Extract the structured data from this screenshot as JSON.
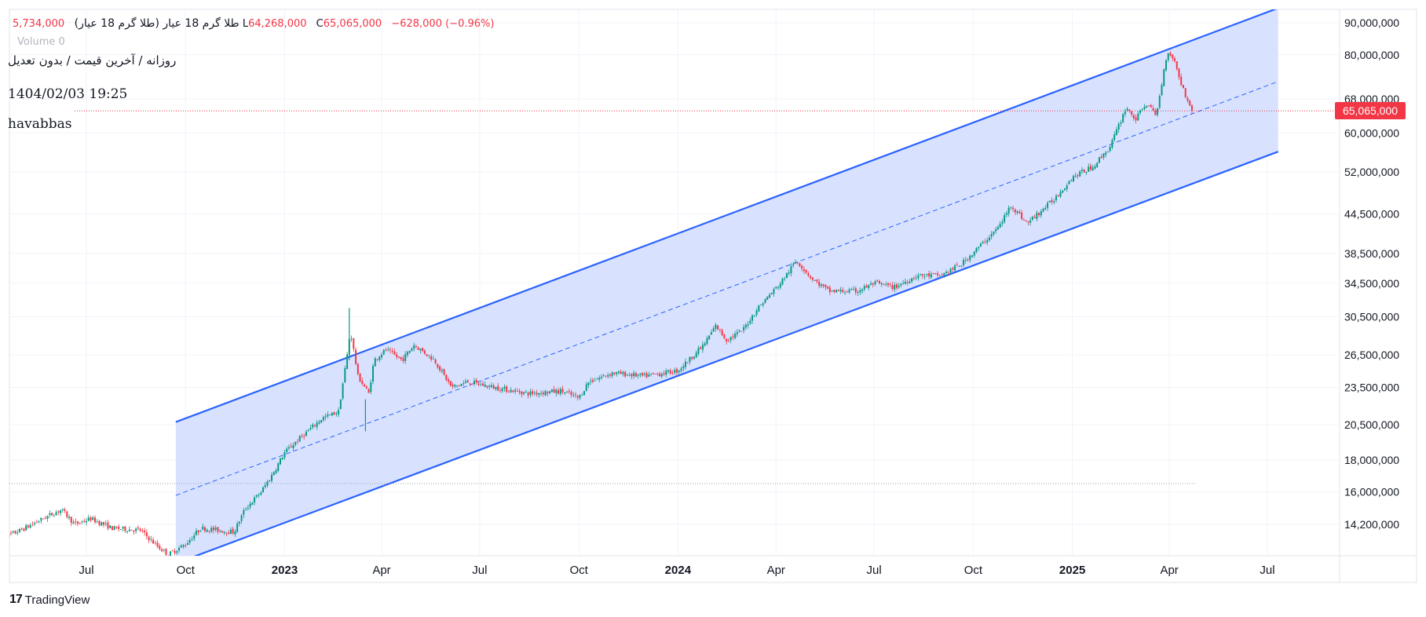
{
  "header": {
    "symbol": "طلا گرم 18 عیار (طلا گرم 18 عیار)",
    "ohlc_partial": "5,734,000",
    "low_label": "L",
    "low_value": "64,268,000",
    "close_label": "C",
    "close_value": "65,065,000",
    "change": "−628,000 (−0.96%)",
    "volume_label": "Volume",
    "volume_value": "0",
    "subtitle": "روزانه / آخرین قیمت / بدون تعدیل",
    "timestamp": "1404/02/03 19:25",
    "author": "havabbas"
  },
  "brand": {
    "name": "TradingView"
  },
  "last_price_label": "65,065,000",
  "colors": {
    "up": "#089981",
    "down": "#f23645",
    "channel_line": "#2962ff",
    "channel_fill": "#d6e0ff",
    "grid": "#f0f3fa",
    "axis_text": "#131722",
    "price_line": "#f23645"
  },
  "chart_data": {
    "type": "candlestick",
    "scale": "log",
    "y_ticks": [
      "14,200,000",
      "16,000,000",
      "18,000,000",
      "20,500,000",
      "23,500,000",
      "26,500,000",
      "30,500,000",
      "34,500,000",
      "38,500,000",
      "44,500,000",
      "52,000,000",
      "60,000,000",
      "68,000,000",
      "80,000,000",
      "90,000,000"
    ],
    "x_ticks": [
      {
        "label": "Jul",
        "date": "2022-07-01",
        "bold": false
      },
      {
        "label": "Oct",
        "date": "2022-10-01",
        "bold": false
      },
      {
        "label": "2023",
        "date": "2023-01-01",
        "bold": true
      },
      {
        "label": "Apr",
        "date": "2023-04-01",
        "bold": false
      },
      {
        "label": "Jul",
        "date": "2023-07-01",
        "bold": false
      },
      {
        "label": "Oct",
        "date": "2023-10-01",
        "bold": false
      },
      {
        "label": "2024",
        "date": "2024-01-01",
        "bold": true
      },
      {
        "label": "Apr",
        "date": "2024-04-01",
        "bold": false
      },
      {
        "label": "Jul",
        "date": "2024-07-01",
        "bold": false
      },
      {
        "label": "Oct",
        "date": "2024-10-01",
        "bold": false
      },
      {
        "label": "2025",
        "date": "2025-01-01",
        "bold": true
      },
      {
        "label": "Apr",
        "date": "2025-04-01",
        "bold": false
      },
      {
        "label": "Jul",
        "date": "2025-07-01",
        "bold": false
      }
    ],
    "price_series": [
      {
        "date": "2022-04-10",
        "value": 13400000
      },
      {
        "date": "2022-05-01",
        "value": 13900000
      },
      {
        "date": "2022-05-25",
        "value": 14600000
      },
      {
        "date": "2022-06-08",
        "value": 15000000
      },
      {
        "date": "2022-06-20",
        "value": 14200000
      },
      {
        "date": "2022-07-05",
        "value": 14500000
      },
      {
        "date": "2022-07-25",
        "value": 14000000
      },
      {
        "date": "2022-08-20",
        "value": 13900000
      },
      {
        "date": "2022-09-05",
        "value": 13100000
      },
      {
        "date": "2022-09-15",
        "value": 12700000
      },
      {
        "date": "2022-10-01",
        "value": 13200000
      },
      {
        "date": "2022-10-15",
        "value": 14000000
      },
      {
        "date": "2022-11-15",
        "value": 13800000
      },
      {
        "date": "2022-11-25",
        "value": 15000000
      },
      {
        "date": "2022-12-10",
        "value": 16000000
      },
      {
        "date": "2022-12-20",
        "value": 17000000
      },
      {
        "date": "2023-01-01",
        "value": 18500000
      },
      {
        "date": "2023-01-15",
        "value": 19500000
      },
      {
        "date": "2023-02-05",
        "value": 21000000
      },
      {
        "date": "2023-02-20",
        "value": 21500000
      },
      {
        "date": "2023-02-28",
        "value": 26500000
      },
      {
        "date": "2023-03-03",
        "value": 29000000
      },
      {
        "date": "2023-03-10",
        "value": 24500000
      },
      {
        "date": "2023-03-20",
        "value": 23000000
      },
      {
        "date": "2023-03-25",
        "value": 26000000
      },
      {
        "date": "2023-04-05",
        "value": 27000000
      },
      {
        "date": "2023-04-20",
        "value": 26000000
      },
      {
        "date": "2023-05-01",
        "value": 27500000
      },
      {
        "date": "2023-05-20",
        "value": 26000000
      },
      {
        "date": "2023-06-05",
        "value": 23500000
      },
      {
        "date": "2023-06-20",
        "value": 24000000
      },
      {
        "date": "2023-07-15",
        "value": 23500000
      },
      {
        "date": "2023-08-15",
        "value": 23000000
      },
      {
        "date": "2023-09-15",
        "value": 23200000
      },
      {
        "date": "2023-10-01",
        "value": 22600000
      },
      {
        "date": "2023-10-10",
        "value": 24000000
      },
      {
        "date": "2023-11-01",
        "value": 24800000
      },
      {
        "date": "2023-12-01",
        "value": 24500000
      },
      {
        "date": "2024-01-01",
        "value": 25000000
      },
      {
        "date": "2024-01-25",
        "value": 27500000
      },
      {
        "date": "2024-02-05",
        "value": 29500000
      },
      {
        "date": "2024-02-15",
        "value": 28000000
      },
      {
        "date": "2024-03-01",
        "value": 29000000
      },
      {
        "date": "2024-03-15",
        "value": 31500000
      },
      {
        "date": "2024-04-05",
        "value": 34500000
      },
      {
        "date": "2024-04-20",
        "value": 37500000
      },
      {
        "date": "2024-05-05",
        "value": 35000000
      },
      {
        "date": "2024-05-20",
        "value": 33500000
      },
      {
        "date": "2024-06-15",
        "value": 33500000
      },
      {
        "date": "2024-07-01",
        "value": 34500000
      },
      {
        "date": "2024-07-20",
        "value": 34000000
      },
      {
        "date": "2024-08-10",
        "value": 35500000
      },
      {
        "date": "2024-09-01",
        "value": 35500000
      },
      {
        "date": "2024-09-20",
        "value": 37000000
      },
      {
        "date": "2024-10-10",
        "value": 40000000
      },
      {
        "date": "2024-10-25",
        "value": 42500000
      },
      {
        "date": "2024-11-05",
        "value": 46000000
      },
      {
        "date": "2024-11-20",
        "value": 43000000
      },
      {
        "date": "2024-12-15",
        "value": 47000000
      },
      {
        "date": "2025-01-01",
        "value": 51000000
      },
      {
        "date": "2025-01-20",
        "value": 53000000
      },
      {
        "date": "2025-02-05",
        "value": 57000000
      },
      {
        "date": "2025-02-20",
        "value": 66000000
      },
      {
        "date": "2025-03-01",
        "value": 63000000
      },
      {
        "date": "2025-03-10",
        "value": 67000000
      },
      {
        "date": "2025-03-20",
        "value": 64000000
      },
      {
        "date": "2025-03-30",
        "value": 81000000
      },
      {
        "date": "2025-04-05",
        "value": 79000000
      },
      {
        "date": "2025-04-12",
        "value": 72000000
      },
      {
        "date": "2025-04-20",
        "value": 66000000
      },
      {
        "date": "2025-04-23",
        "value": 65065000
      }
    ],
    "spikes": [
      {
        "date": "2023-03-02",
        "high": 31500000,
        "low": 26000000
      },
      {
        "date": "2023-03-17",
        "high": 22500000,
        "low": 20000000
      }
    ],
    "channel": {
      "start_date": "2022-09-22",
      "end_date": "2025-07-11",
      "upper": [
        20700000,
        95000000
      ],
      "middle": [
        15800000,
        72500000
      ],
      "lower": [
        12300000,
        56000000
      ]
    },
    "last_price": 65065000,
    "reference_line_value": 16500000
  }
}
